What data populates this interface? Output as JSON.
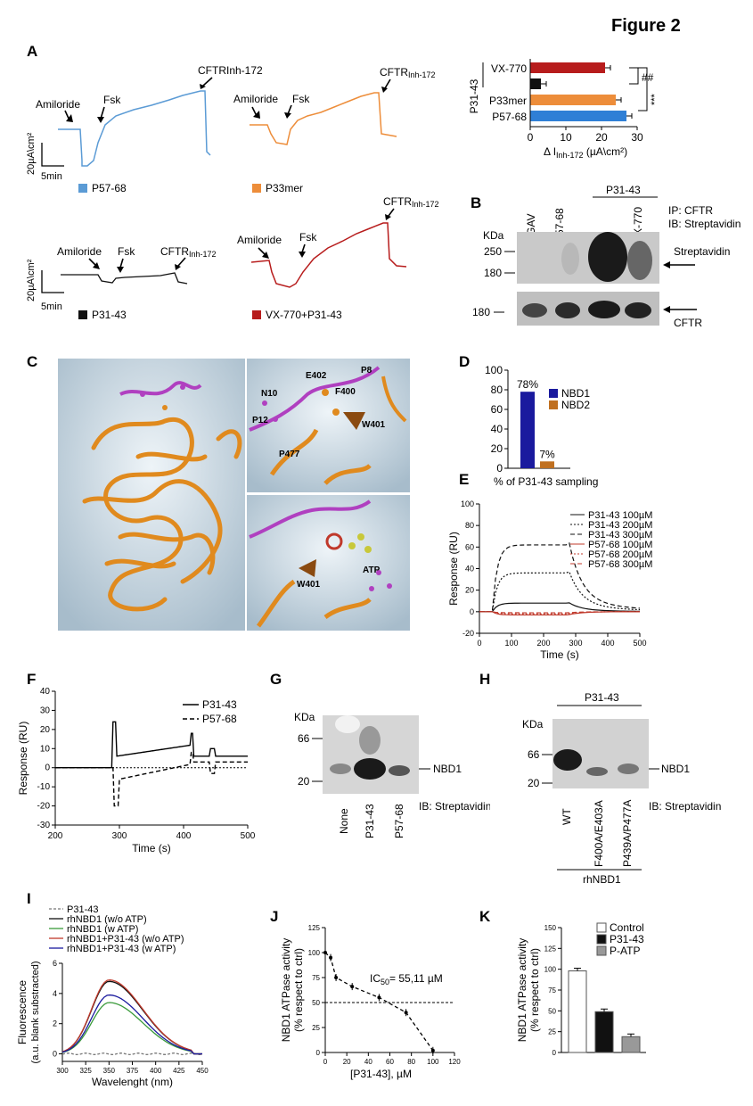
{
  "figure_title": "Figure 2",
  "panel_letters": {
    "A": "A",
    "B": "B",
    "C": "C",
    "D": "D",
    "E": "E",
    "F": "F",
    "G": "G",
    "H": "H",
    "I": "I",
    "J": "J",
    "K": "K"
  },
  "colors": {
    "blue": "#5b9bd5",
    "orange": "#ed8d3a",
    "black": "#111111",
    "red": "#b71c1c",
    "navy": "#1a1a9e",
    "brown": "#c07020",
    "green": "#3a9a3a",
    "darkred": "#c0392b",
    "gray": "#999999"
  },
  "panelA": {
    "traces": [
      {
        "legend": "P57-68",
        "color": "#5b9bd5",
        "amiloride": "Amiloride",
        "fsk": "Fsk",
        "inh": "CFTRInh-172"
      },
      {
        "legend": "P33mer",
        "color": "#ed8d3a",
        "amiloride": "Amiloride",
        "fsk": "Fsk",
        "inh": "CFTR",
        "inh_sub": "Inh-172"
      },
      {
        "legend": "P31-43",
        "color": "#111111",
        "amiloride": "Amiloride",
        "fsk": "Fsk",
        "inh": "CFTR",
        "inh_sub": "Inh-172"
      },
      {
        "legend": "VX-770+P31-43",
        "color": "#b71c1c",
        "amiloride": "Amiloride",
        "fsk": "Fsk",
        "inh": "CFTR",
        "inh_sub": "Inh-172"
      }
    ],
    "scale_y": "20µA\\cm²",
    "scale_y2": "20µA\\cm²",
    "scale_x": "5min"
  },
  "chart_data": [
    {
      "panel": "A-bar",
      "type": "bar",
      "orientation": "horizontal",
      "categories": [
        "VX-770",
        "P31-43",
        "P33mer",
        "P57-68"
      ],
      "category_labels": [
        "VX-770",
        "",
        "P33mer",
        "P57-68"
      ],
      "group_label": "P31-43",
      "values": [
        21,
        3,
        24,
        27
      ],
      "colors": [
        "#b71c1c",
        "#111111",
        "#ed8d3a",
        "#2f7fd6"
      ],
      "xlim": [
        0,
        30
      ],
      "xticks": [
        0,
        10,
        20,
        30
      ],
      "xlabel": "Δ I",
      "xlabel_sub": "Inh-172",
      "xlabel_unit": " (µA\\cm²)",
      "sig": [
        "##",
        "***"
      ]
    },
    {
      "panel": "D",
      "type": "bar",
      "categories": [
        "NBD1",
        "NBD2"
      ],
      "values": [
        78,
        7
      ],
      "value_labels": [
        "78%",
        "7%"
      ],
      "colors": [
        "#1a1a9e",
        "#c07020"
      ],
      "ylim": [
        0,
        100
      ],
      "yticks": [
        0,
        20,
        40,
        60,
        80,
        100
      ],
      "xlabel": "% of P31-43 sampling"
    },
    {
      "panel": "E",
      "type": "line",
      "xlabel": "Time (s)",
      "ylabel": "Response (RU)",
      "xlim": [
        0,
        500
      ],
      "ylim": [
        -20,
        100
      ],
      "xticks": [
        0,
        100,
        200,
        300,
        400,
        500
      ],
      "yticks": [
        -20,
        0,
        20,
        40,
        60,
        80,
        100
      ],
      "series": [
        {
          "name": "P31-43 100µM",
          "peak": 8
        },
        {
          "name": "P31-43 200µM",
          "peak": 36
        },
        {
          "name": "P31-43 300µM",
          "peak": 62
        },
        {
          "name": "P57-68 100µM",
          "peak": -3
        },
        {
          "name": "P57-68 200µM",
          "peak": -2
        },
        {
          "name": "P57-68 300µM",
          "peak": -1
        }
      ]
    },
    {
      "panel": "F",
      "type": "line",
      "xlabel": "Time (s)",
      "ylabel": "Response (RU)",
      "xlim": [
        200,
        500
      ],
      "ylim": [
        -30,
        40
      ],
      "xticks": [
        200,
        300,
        400,
        500
      ],
      "yticks": [
        -30,
        -20,
        -10,
        0,
        10,
        20,
        30,
        40
      ],
      "series": [
        {
          "name": "P31-43",
          "plateau": 12
        },
        {
          "name": "P57-68",
          "plateau": 3
        }
      ]
    },
    {
      "panel": "I",
      "type": "line",
      "xlabel": "Wavelenght (nm)",
      "ylabel": "Fluorescence",
      "ylabel2": "(a.u. blank substracted)",
      "xlim": [
        300,
        450
      ],
      "ylim": [
        -0.5,
        6
      ],
      "xticks": [
        300,
        325,
        350,
        375,
        400,
        425,
        450
      ],
      "yticks": [
        0,
        2,
        4,
        6
      ],
      "series": [
        {
          "name": "P31-43",
          "peak": 0.05,
          "color": "#777777"
        },
        {
          "name": "rhNBD1 (w/o ATP)",
          "peak": 4.8,
          "color": "#111111"
        },
        {
          "name": "rhNBD1 (w ATP)",
          "peak": 3.4,
          "color": "#3a9a3a"
        },
        {
          "name": "rhNBD1+P31-43 (w/o ATP)",
          "peak": 4.9,
          "color": "#c0392b"
        },
        {
          "name": "rhNBD1+P31-43 (w ATP)",
          "peak": 3.9,
          "color": "#1a1a9e"
        }
      ]
    },
    {
      "panel": "J",
      "type": "line",
      "xlabel": "[P31-43], µM",
      "ylabel": "NBD1 ATPase activity",
      "ylabel2": "(% respect to ctrl)",
      "annotation": "IC",
      "annotation_sub": "50",
      "annotation_rest": "= 55,11 µM",
      "xlim": [
        0,
        120
      ],
      "ylim": [
        0,
        125
      ],
      "xticks": [
        0,
        20,
        40,
        60,
        80,
        100,
        120
      ],
      "yticks": [
        0,
        25,
        50,
        75,
        100,
        125
      ],
      "x": [
        0,
        5,
        10,
        25,
        50,
        75,
        100
      ],
      "y": [
        100,
        95,
        75,
        66,
        55,
        40,
        2
      ]
    },
    {
      "panel": "K",
      "type": "bar",
      "categories": [
        "Control",
        "P31-43",
        "P-ATP"
      ],
      "values": [
        98,
        49,
        19
      ],
      "colors": [
        "#ffffff",
        "#111111",
        "#999999"
      ],
      "ylim": [
        0,
        150
      ],
      "yticks": [
        0,
        25,
        50,
        75,
        100,
        125,
        150
      ],
      "ylabel": "NBD1 ATPase activity",
      "ylabel2": "(% respect to ctrl)"
    }
  ],
  "panelB": {
    "kda": "KDa",
    "lanes": [
      "PGAV",
      "P57-68",
      "P31-43",
      "VX-770"
    ],
    "group": "P31-43",
    "ip": "IP: CFTR",
    "ib": "IB: Streptavidin",
    "markers_top": [
      "250",
      "180"
    ],
    "marker_bottom": "180",
    "band1": "Streptavidin",
    "band2": "CFTR"
  },
  "panelC": {
    "residues": [
      "E402",
      "P8",
      "N10",
      "F400",
      "P12",
      "W401",
      "P477"
    ],
    "residues_bottom": [
      "W401",
      "ATP"
    ]
  },
  "panelG": {
    "kda": "KDa",
    "markers": [
      "66",
      "20"
    ],
    "lanes": [
      "None",
      "P31-43",
      "P57-68"
    ],
    "band": "NBD1",
    "ib": "IB: Streptavidin"
  },
  "panelH": {
    "kda": "KDa",
    "markers": [
      "66",
      "20"
    ],
    "group": "P31-43",
    "lanes": [
      "WT",
      "F400A/E403A",
      "P439A/P477A"
    ],
    "band": "NBD1",
    "ib": "IB: Streptavidin",
    "footer": "rhNBD1"
  }
}
